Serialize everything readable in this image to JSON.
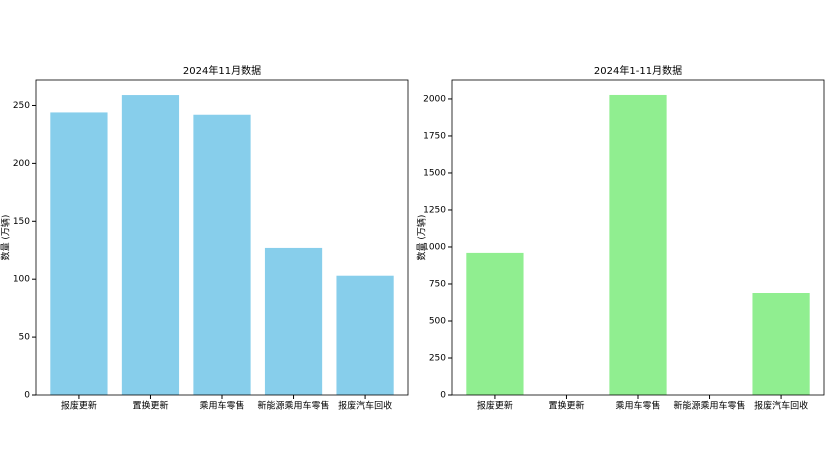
{
  "chart_data": [
    {
      "type": "bar",
      "title": "2024年11月数据",
      "y_label": "数量 (万辆)",
      "categories": [
        "报废更新",
        "置换更新",
        "乘用车零售",
        "新能源乘用车零售",
        "报废汽车回收"
      ],
      "values": [
        244,
        259,
        242,
        127,
        103
      ],
      "color": "#87ceeb",
      "ylim": [
        0,
        272
      ],
      "yticks": [
        0,
        50,
        100,
        150,
        200,
        250
      ]
    },
    {
      "type": "bar",
      "title": "2024年1-11月数据",
      "y_label": "数量 (万辆)",
      "categories": [
        "报废更新",
        "置换更新",
        "乘用车零售",
        "新能源乘用车零售",
        "报废汽车回收"
      ],
      "values": [
        960,
        0,
        2027,
        0,
        689
      ],
      "color": "#90ee90",
      "ylim": [
        0,
        2128
      ],
      "yticks": [
        0,
        250,
        500,
        750,
        1000,
        1250,
        1500,
        1750,
        2000
      ]
    }
  ]
}
